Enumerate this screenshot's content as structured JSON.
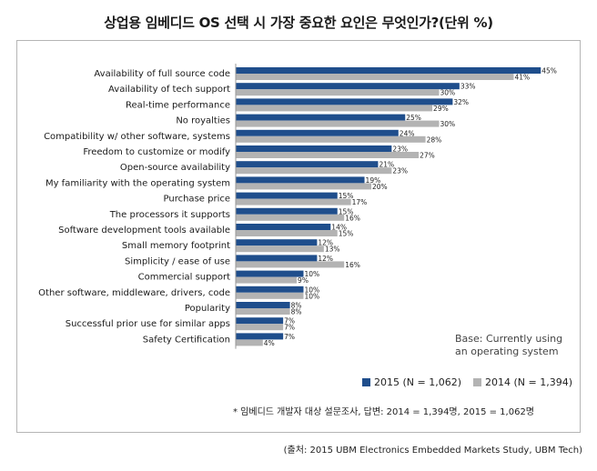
{
  "chart_data": {
    "type": "bar",
    "title": "상업용 임베디드 OS 선택 시 가장 중요한 요인은 무엇인가?(단위 %)",
    "orientation": "horizontal",
    "categories": [
      "Availability of full source code",
      "Availability of tech support",
      "Real-time performance",
      "No royalties",
      "Compatibility w/ other software, systems",
      "Freedom to customize or modify",
      "Open-source availability",
      "My familiarity with the operating system",
      "Purchase price",
      "The processors it supports",
      "Software development tools available",
      "Small memory footprint",
      "Simplicity / ease of use",
      "Commercial support",
      "Other software, middleware, drivers, code",
      "Popularity",
      "Successful prior use for similar apps",
      "Safety Certification"
    ],
    "series": [
      {
        "name": "2015 (N = 1,062)",
        "color": "#1f4e8c",
        "values": [
          45,
          33,
          32,
          25,
          24,
          23,
          21,
          19,
          15,
          15,
          14,
          12,
          12,
          10,
          10,
          8,
          7,
          7
        ]
      },
      {
        "name": "2014 (N = 1,394)",
        "color": "#b3b3b3",
        "values": [
          41,
          30,
          29,
          30,
          28,
          27,
          23,
          20,
          17,
          16,
          15,
          13,
          16,
          9,
          10,
          8,
          7,
          4
        ]
      }
    ],
    "value_suffix": "%",
    "xlim": [
      0,
      45
    ],
    "legend_position": "bottom-right",
    "note": "Base: Currently using\nan operating system",
    "footnote": "* 임베디드 개발자 대상 설문조사, 답변: 2014 = 1,394명, 2015 = 1,062명",
    "source": "(출처: 2015 UBM Electronics Embedded Markets Study, UBM Tech)"
  }
}
